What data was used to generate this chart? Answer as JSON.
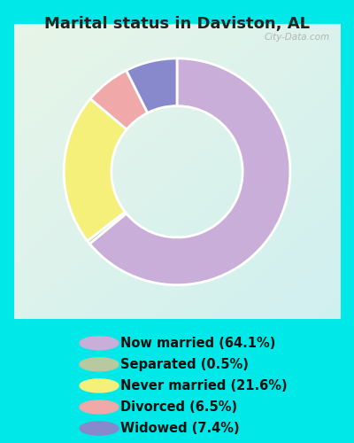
{
  "title": "Marital status in Daviston, AL",
  "slices": [
    {
      "label": "Now married (64.1%)",
      "value": 64.1,
      "color": "#c8aed8"
    },
    {
      "label": "Separated (0.5%)",
      "value": 0.5,
      "color": "#b8c9a0"
    },
    {
      "label": "Never married (21.6%)",
      "value": 21.6,
      "color": "#f5f07a"
    },
    {
      "label": "Divorced (6.5%)",
      "value": 6.5,
      "color": "#f0a8a8"
    },
    {
      "label": "Widowed (7.4%)",
      "value": 7.4,
      "color": "#8888cc"
    }
  ],
  "outer_bg": "#00e8e8",
  "chart_bg_topleft": "#e8f5e8",
  "chart_bg_bottomright": "#d0f0f0",
  "title_color": "#222222",
  "title_fontsize": 13,
  "legend_fontsize": 10.5,
  "watermark": "City-Data.com",
  "chart_border_color": "#cccccc"
}
